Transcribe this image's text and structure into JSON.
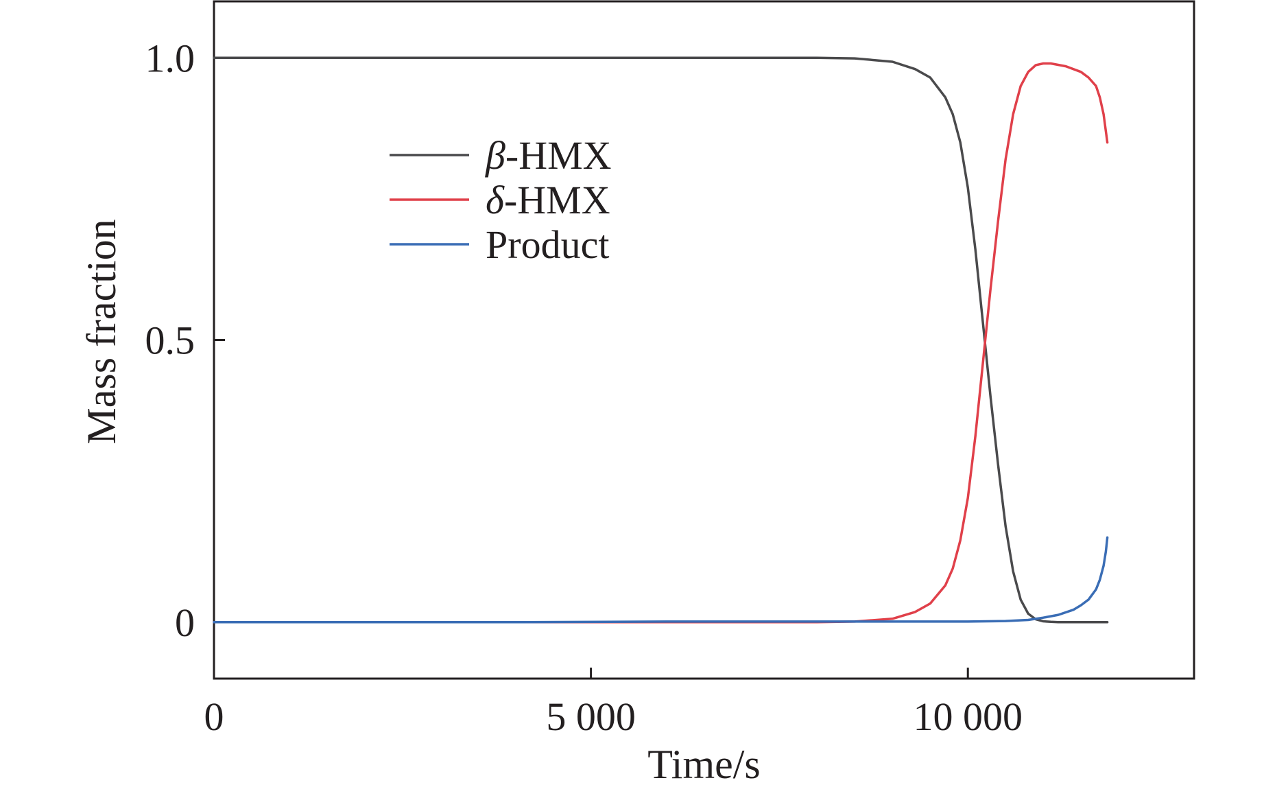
{
  "chart_data": {
    "type": "line",
    "title": "",
    "xlabel": "Time/s",
    "ylabel": "Mass fraction",
    "xlim": [
      0,
      13000
    ],
    "ylim": [
      -0.1,
      1.1
    ],
    "xticks": [
      0,
      5000,
      10000
    ],
    "xtick_labels": [
      "0",
      "5 000",
      "10 000"
    ],
    "yticks": [
      0,
      0.5,
      1.0
    ],
    "ytick_labels": [
      "0",
      "0.5",
      "1.0"
    ],
    "grid": false,
    "legend_position": "upper-left-inside",
    "series": [
      {
        "name": "β-HMX",
        "legend_symbol": "β",
        "legend_suffix": "-HMX",
        "color": "#4a4a4c",
        "x": [
          0,
          2000,
          4000,
          6000,
          8000,
          8500,
          9000,
          9300,
          9500,
          9700,
          9800,
          9900,
          10000,
          10100,
          10200,
          10300,
          10400,
          10500,
          10600,
          10700,
          10800,
          10900,
          11000,
          11100,
          11200,
          11400,
          11600,
          11800,
          11850
        ],
        "y": [
          1.0,
          1.0,
          1.0,
          1.0,
          1.0,
          0.999,
          0.993,
          0.98,
          0.965,
          0.93,
          0.9,
          0.85,
          0.77,
          0.66,
          0.53,
          0.4,
          0.28,
          0.17,
          0.09,
          0.04,
          0.015,
          0.005,
          0.0015,
          0.0005,
          0.0,
          0.0,
          0.0,
          0.0,
          0.0
        ]
      },
      {
        "name": "δ-HMX",
        "legend_symbol": "δ",
        "legend_suffix": "-HMX",
        "color": "#e0404a",
        "x": [
          0,
          2000,
          4000,
          6000,
          8000,
          8500,
          9000,
          9300,
          9500,
          9700,
          9800,
          9900,
          10000,
          10100,
          10200,
          10300,
          10400,
          10500,
          10600,
          10700,
          10800,
          10900,
          11000,
          11100,
          11300,
          11500,
          11600,
          11700,
          11750,
          11800,
          11830,
          11850
        ],
        "y": [
          0.0,
          0.0,
          0.0,
          0.0,
          0.0,
          0.001,
          0.006,
          0.018,
          0.033,
          0.065,
          0.095,
          0.145,
          0.22,
          0.33,
          0.46,
          0.59,
          0.71,
          0.82,
          0.9,
          0.95,
          0.975,
          0.987,
          0.99,
          0.99,
          0.985,
          0.975,
          0.965,
          0.95,
          0.93,
          0.9,
          0.87,
          0.85
        ]
      },
      {
        "name": "Product",
        "legend_symbol": "",
        "legend_suffix": "Product",
        "color": "#3a6db5",
        "x": [
          0,
          2000,
          4000,
          6000,
          8000,
          9000,
          10000,
          10500,
          10800,
          11000,
          11200,
          11400,
          11500,
          11600,
          11700,
          11750,
          11800,
          11830,
          11850
        ],
        "y": [
          0.0,
          0.0,
          0.0,
          0.001,
          0.001,
          0.001,
          0.001,
          0.002,
          0.004,
          0.008,
          0.013,
          0.022,
          0.03,
          0.04,
          0.058,
          0.075,
          0.1,
          0.125,
          0.15
        ]
      }
    ]
  }
}
